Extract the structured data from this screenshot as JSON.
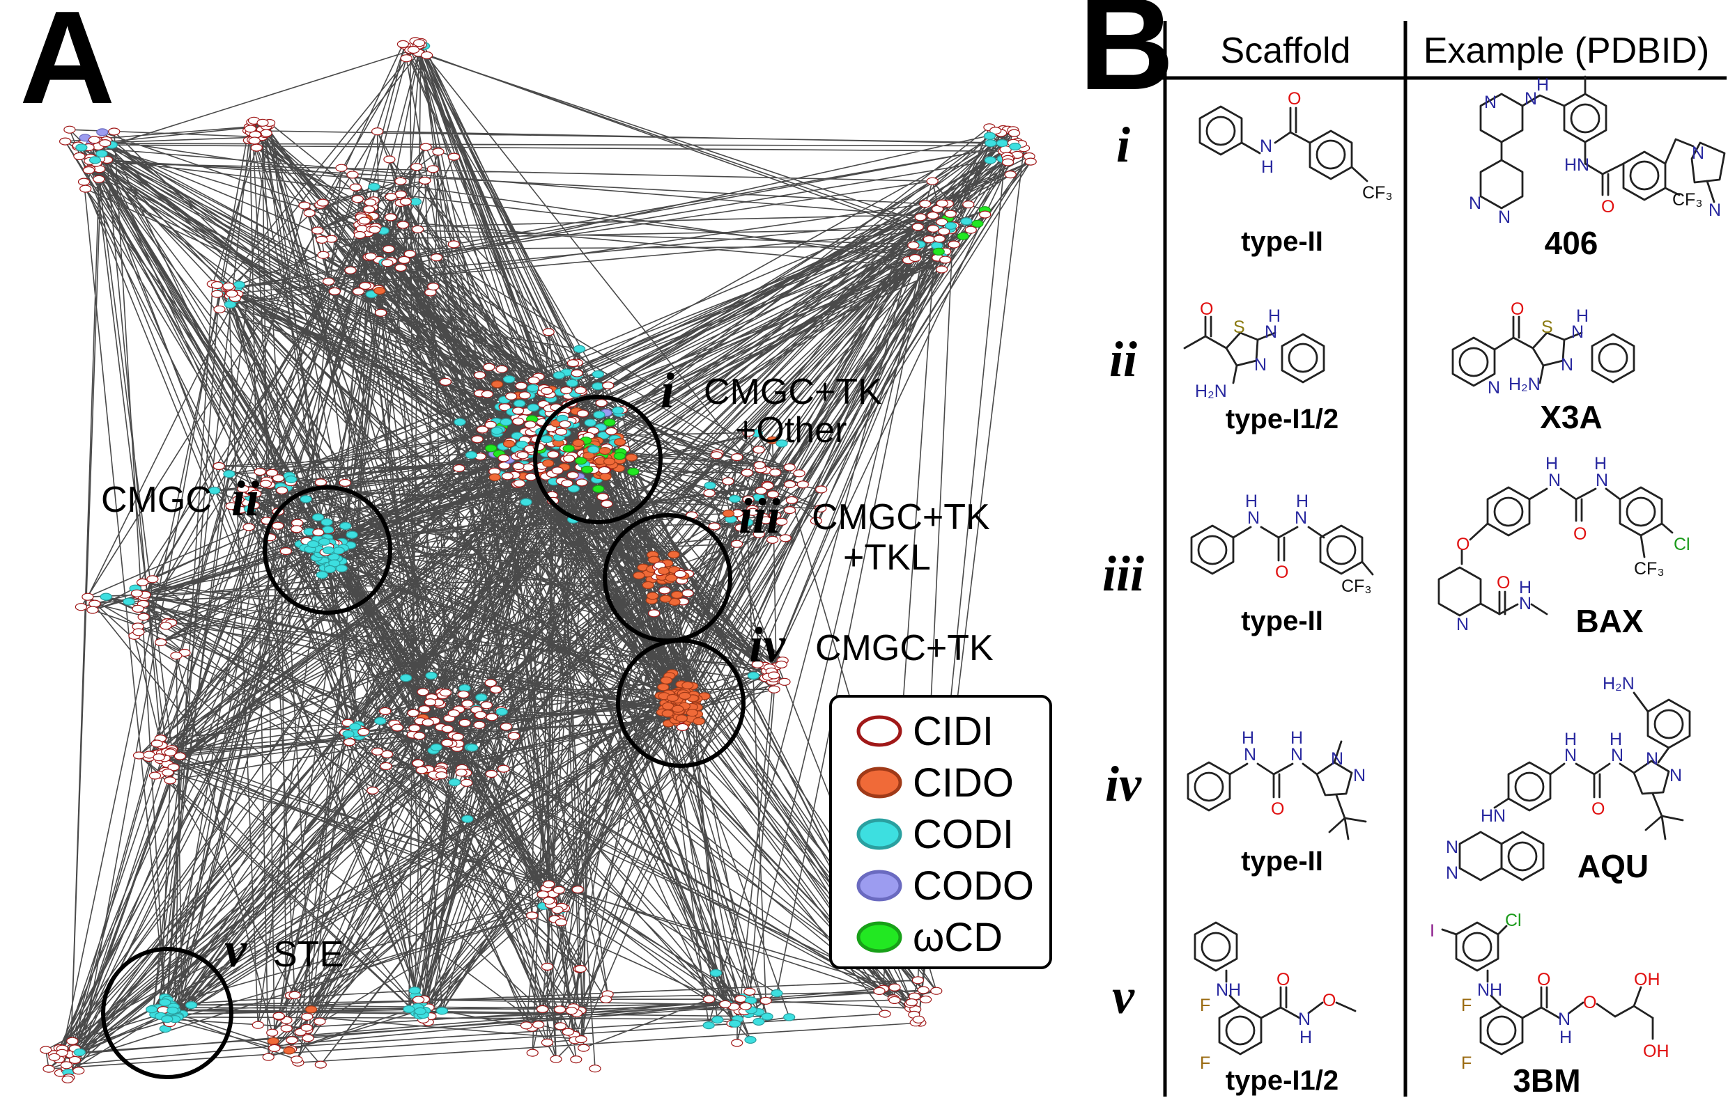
{
  "panel_labels": {
    "network": "A",
    "table": "B"
  },
  "network": {
    "clusters": [
      {
        "id": "i",
        "numeral": "i",
        "label": "CMGC+TK",
        "label2": "+Other"
      },
      {
        "id": "ii",
        "numeral": "ii",
        "label": "CMGC",
        "label2": ""
      },
      {
        "id": "iii",
        "numeral": "iii",
        "label": "CMGC+TK",
        "label2": "+TKL"
      },
      {
        "id": "iv",
        "numeral": "iv",
        "label": "CMGC+TK",
        "label2": ""
      },
      {
        "id": "v",
        "numeral": "v",
        "label": "STE",
        "label2": ""
      }
    ],
    "legend": [
      {
        "label": "CIDI",
        "fill": "#ffffff",
        "stroke": "#a01818"
      },
      {
        "label": "CIDO",
        "fill": "#f06a38",
        "stroke": "#a03a18"
      },
      {
        "label": "CODI",
        "fill": "#3ddfe0",
        "stroke": "#2aa0a0"
      },
      {
        "label": "CODO",
        "fill": "#9c9cf0",
        "stroke": "#6a6ac0"
      },
      {
        "label": "ωCD",
        "fill": "#22e822",
        "stroke": "#18a018"
      }
    ]
  },
  "table": {
    "headers": {
      "scaffold": "Scaffold",
      "example": "Example (PDBID)"
    },
    "rows": [
      {
        "numeral": "i",
        "scaffold_type": "type-II",
        "pdb_id": "406"
      },
      {
        "numeral": "ii",
        "scaffold_type": "type-I1/2",
        "pdb_id": "X3A"
      },
      {
        "numeral": "iii",
        "scaffold_type": "type-II",
        "pdb_id": "BAX"
      },
      {
        "numeral": "iv",
        "scaffold_type": "type-II",
        "pdb_id": "AQU"
      },
      {
        "numeral": "v",
        "scaffold_type": "type-I1/2",
        "pdb_id": "3BM"
      }
    ]
  },
  "atom_labels": {
    "H": "H",
    "N": "N",
    "NH": "NH",
    "HN": "HN",
    "H2N": "H₂N",
    "NH2": "NH₂",
    "O": "O",
    "S": "S",
    "F": "F",
    "Cl": "Cl",
    "I": "I",
    "OH": "OH",
    "CF3": "CF₃"
  }
}
